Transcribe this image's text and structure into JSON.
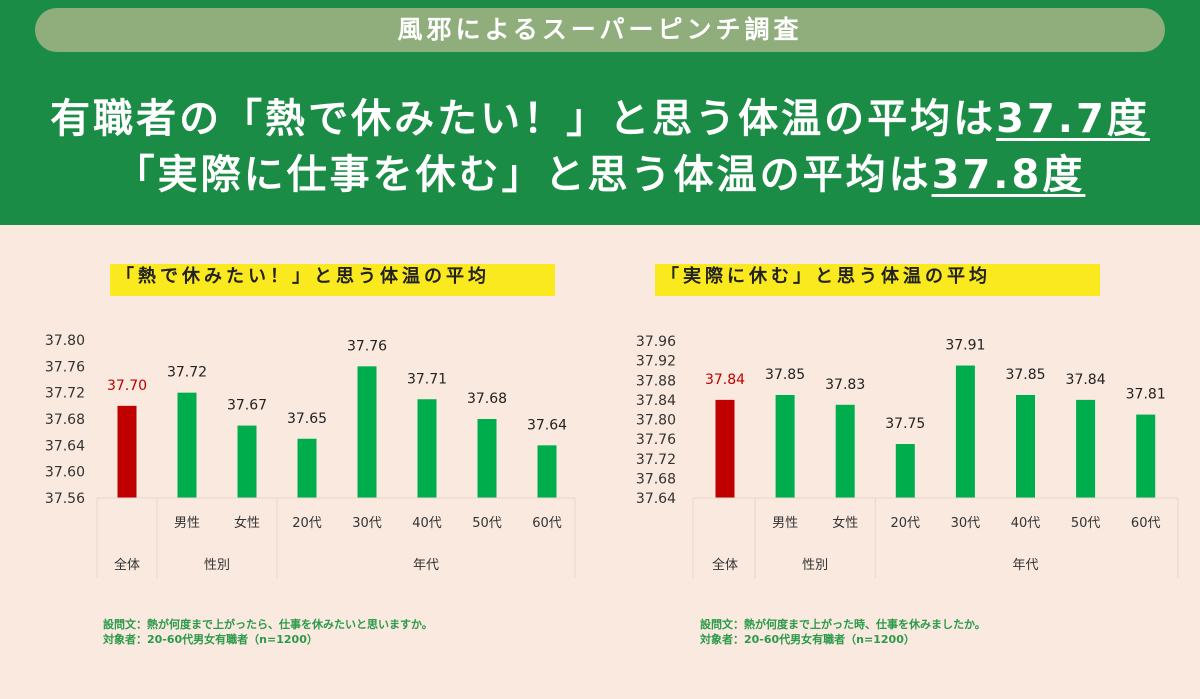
{
  "banner": "風邪によるスーパーピンチ調査",
  "headline": {
    "line1_prefix": "有職者の「熱で休みたい！」と思う体温の平均は",
    "line1_value": "37.7度",
    "line2_prefix": "「実際に仕事を休む」と思う体温の平均は",
    "line2_value": "37.8度"
  },
  "colors": {
    "header": "#1b8c45",
    "highlight_bar": "#c00000",
    "bar": "#00ad4c",
    "title_marker": "#fbe91f"
  },
  "chart_data": [
    {
      "type": "bar",
      "title": "「熱で休みたい！」と思う体温の平均",
      "categories": [
        "全体",
        "男性",
        "女性",
        "20代",
        "30代",
        "40代",
        "50代",
        "60代"
      ],
      "groups": [
        {
          "label": "全体",
          "span": 1
        },
        {
          "label": "性別",
          "span": 2
        },
        {
          "label": "年代",
          "span": 5
        }
      ],
      "values": [
        37.7,
        37.72,
        37.67,
        37.65,
        37.76,
        37.71,
        37.68,
        37.64
      ],
      "value_labels": [
        "37.70",
        "37.72",
        "37.67",
        "37.65",
        "37.76",
        "37.71",
        "37.68",
        "37.64"
      ],
      "yticks": [
        "37.80",
        "37.76",
        "37.72",
        "37.68",
        "37.64",
        "37.60",
        "37.56"
      ],
      "ylim": [
        37.56,
        37.8
      ],
      "highlight_index": 0,
      "grid": false,
      "notes": [
        "設問文：熱が何度まで上がったら、仕事を休みたいと思いますか。",
        "対象者：20-60代男女有職者（n=1200）"
      ]
    },
    {
      "type": "bar",
      "title": "「実際に休む」と思う体温の平均",
      "categories": [
        "全体",
        "男性",
        "女性",
        "20代",
        "30代",
        "40代",
        "50代",
        "60代"
      ],
      "groups": [
        {
          "label": "全体",
          "span": 1
        },
        {
          "label": "性別",
          "span": 2
        },
        {
          "label": "年代",
          "span": 5
        }
      ],
      "values": [
        37.84,
        37.85,
        37.83,
        37.75,
        37.91,
        37.85,
        37.84,
        37.81
      ],
      "value_labels": [
        "37.84",
        "37.85",
        "37.83",
        "37.75",
        "37.91",
        "37.85",
        "37.84",
        "37.81"
      ],
      "yticks": [
        "37.96",
        "37.92",
        "37.88",
        "37.84",
        "37.80",
        "37.76",
        "37.72",
        "37.68",
        "37.64"
      ],
      "ylim": [
        37.64,
        37.96
      ],
      "highlight_index": 0,
      "grid": false,
      "notes": [
        "設問文：熱が何度まで上がった時、仕事を休みましたか。",
        "対象者：20-60代男女有職者（n=1200）"
      ]
    }
  ]
}
